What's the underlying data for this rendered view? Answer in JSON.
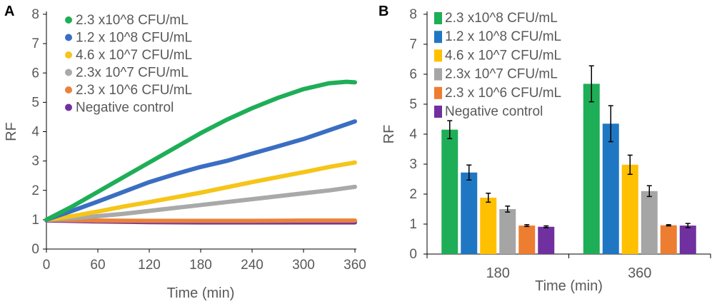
{
  "chart_data": [
    {
      "panel_label": "A",
      "type": "line",
      "title": "",
      "xlabel": "Time (min)",
      "ylabel": "RF",
      "xlim": [
        0,
        360
      ],
      "ylim": [
        0,
        8
      ],
      "xticks": [
        "0",
        "60",
        "120",
        "180",
        "240",
        "300",
        "360"
      ],
      "yticks": [
        "0",
        "1",
        "2",
        "3",
        "4",
        "5",
        "6",
        "7",
        "8"
      ],
      "grid": false,
      "legend_position": "top-left",
      "series": [
        {
          "name": "2.3 x10^8 CFU/mL",
          "color": "#1eae57",
          "x": [
            0,
            30,
            60,
            90,
            120,
            150,
            180,
            210,
            240,
            270,
            300,
            330,
            350,
            360
          ],
          "y": [
            1.0,
            1.45,
            1.95,
            2.45,
            2.95,
            3.45,
            3.95,
            4.4,
            4.8,
            5.15,
            5.45,
            5.65,
            5.7,
            5.68
          ]
        },
        {
          "name": "1.2 x 10^8 CFU/mL",
          "color": "#3a6ec2",
          "x": [
            0,
            30,
            60,
            90,
            120,
            150,
            180,
            210,
            240,
            270,
            300,
            330,
            360
          ],
          "y": [
            1.0,
            1.3,
            1.62,
            1.95,
            2.28,
            2.55,
            2.8,
            3.0,
            3.25,
            3.5,
            3.75,
            4.05,
            4.35
          ]
        },
        {
          "name": "4.6 x 10^7 CFU/mL",
          "color": "#f5c518",
          "x": [
            0,
            30,
            60,
            90,
            120,
            150,
            180,
            210,
            240,
            270,
            300,
            330,
            360
          ],
          "y": [
            1.0,
            1.12,
            1.28,
            1.45,
            1.6,
            1.76,
            1.92,
            2.1,
            2.28,
            2.45,
            2.62,
            2.8,
            2.95
          ]
        },
        {
          "name": "2.3x 10^7 CFU/mL",
          "color": "#a9a9a9",
          "x": [
            0,
            30,
            60,
            90,
            120,
            150,
            180,
            210,
            240,
            270,
            300,
            330,
            360
          ],
          "y": [
            1.0,
            1.05,
            1.12,
            1.2,
            1.3,
            1.4,
            1.5,
            1.6,
            1.7,
            1.8,
            1.9,
            2.0,
            2.12
          ]
        },
        {
          "name": "2.3 x 10^6 CFU/mL",
          "color": "#e9823a",
          "x": [
            0,
            60,
            120,
            180,
            240,
            300,
            360
          ],
          "y": [
            1.0,
            0.97,
            0.96,
            0.96,
            0.96,
            0.97,
            0.97
          ]
        },
        {
          "name": "Negative control",
          "color": "#7030a0",
          "x": [
            0,
            60,
            120,
            180,
            240,
            300,
            360
          ],
          "y": [
            0.98,
            0.94,
            0.92,
            0.91,
            0.91,
            0.91,
            0.91
          ]
        }
      ]
    },
    {
      "panel_label": "B",
      "type": "bar",
      "title": "",
      "xlabel": "Time (min)",
      "ylabel": "RF",
      "ylim": [
        0,
        8
      ],
      "yticks": [
        "0",
        "1",
        "2",
        "3",
        "4",
        "5",
        "6",
        "7",
        "8"
      ],
      "categories": [
        "180",
        "360"
      ],
      "grid": false,
      "legend_position": "top-left",
      "series": [
        {
          "name": "2.3 x10^8 CFU/mL",
          "color": "#1eae57",
          "values": [
            4.15,
            5.68
          ],
          "errors": [
            0.3,
            0.6
          ]
        },
        {
          "name": "1.2 x 10^8 CFU/mL",
          "color": "#1f77c4",
          "values": [
            2.72,
            4.35
          ],
          "errors": [
            0.25,
            0.6
          ]
        },
        {
          "name": "4.6 x 10^7 CFU/mL",
          "color": "#ffc000",
          "values": [
            1.88,
            2.98
          ],
          "errors": [
            0.15,
            0.32
          ]
        },
        {
          "name": "2.3x 10^7 CFU/mL",
          "color": "#a5a5a5",
          "values": [
            1.5,
            2.1
          ],
          "errors": [
            0.1,
            0.18
          ]
        },
        {
          "name": "2.3 x 10^6 CFU/mL",
          "color": "#ed7d31",
          "values": [
            0.95,
            0.96
          ],
          "errors": [
            0.03,
            0.02
          ]
        },
        {
          "name": "Negative control",
          "color": "#7030a0",
          "values": [
            0.91,
            0.95
          ],
          "errors": [
            0.03,
            0.07
          ]
        }
      ]
    }
  ]
}
